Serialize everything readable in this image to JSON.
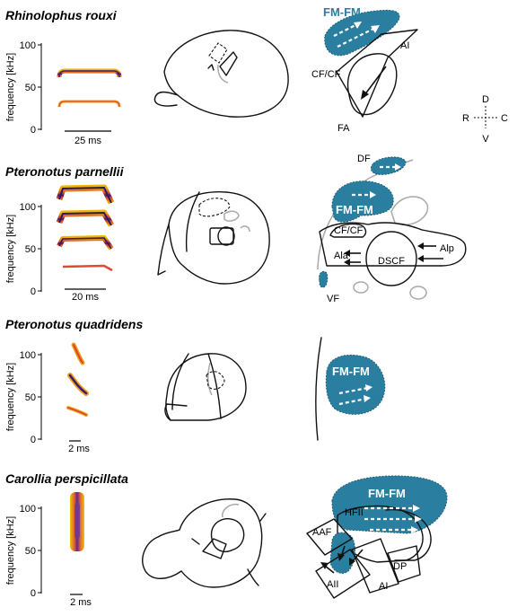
{
  "axis": {
    "ylabel": "frequency [kHz]",
    "ticks_0_100": [
      "100",
      "50",
      "0"
    ]
  },
  "orientation": {
    "up": "D",
    "down": "V",
    "left": "R",
    "right": "C"
  },
  "colors": {
    "fm_region": "#2a7fa0"
  },
  "panels": [
    {
      "species": "Rhinolophus rouxi",
      "scale_bar": "25 ms",
      "labels": {
        "fm_fm": "FM-FM",
        "ai": "AI",
        "cf_cf": "CF/CF",
        "fa": "FA"
      }
    },
    {
      "species": "Pteronotus parnellii",
      "scale_bar": "20 ms",
      "labels": {
        "df": "DF",
        "fm_fm": "FM-FM",
        "cf_cf": "CF/CF",
        "ala": "Ala",
        "dscf": "DSCF",
        "alp": "Alp",
        "vf": "VF"
      }
    },
    {
      "species": "Pteronotus quadridens",
      "scale_bar": "2 ms",
      "labels": {
        "fm_fm": "FM-FM"
      }
    },
    {
      "species": "Carollia perspicillata",
      "scale_bar": "2 ms",
      "labels": {
        "fm_fm": "FM-FM",
        "hfii": "HFII",
        "aaf": "AAF",
        "hfi": "HFI",
        "dp": "DP",
        "aii": "AII",
        "ai": "AI"
      }
    }
  ]
}
